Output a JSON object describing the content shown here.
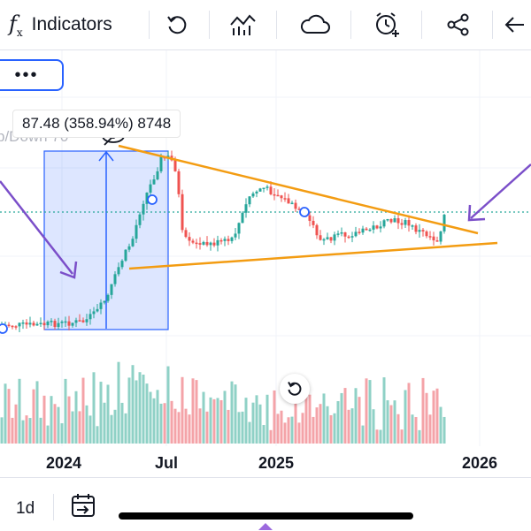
{
  "toolbar": {
    "indicators_label": "Indicators",
    "icons": [
      "fx-icon",
      "undo-icon",
      "chart-type-icon",
      "cloud-icon",
      "alert-clock-icon",
      "share-icon",
      "back-arrow-icon"
    ]
  },
  "chart": {
    "more_button_label": "•••",
    "measure_label": "87.48 (358.94%) 8748",
    "indicator_label": "p/Down 70",
    "x_axis_labels": [
      "2024",
      "Jul",
      "2025",
      "2026"
    ],
    "colors": {
      "up": "#26a69a",
      "down": "#ef5350",
      "trendline": "#f39c12",
      "measure": "#2962ff",
      "annotation_arrow": "#7b4fc9",
      "volume_up": "#8fd1c6",
      "volume_down": "#f4a3a8"
    }
  },
  "bottom_bar": {
    "interval": "1d",
    "icons": [
      "replay-icon"
    ]
  }
}
